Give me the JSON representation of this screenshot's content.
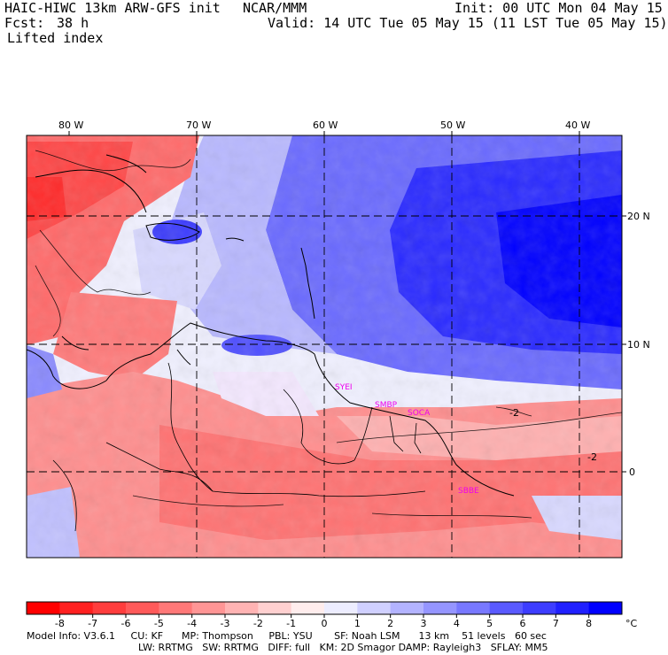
{
  "header": {
    "model_title": "HAIC-HIWC 13km ARW-GFS init",
    "center": "NCAR/MMM",
    "init": "Init: 00 UTC Mon 04 May 15",
    "fcst_label": "Fcst:",
    "fcst_value": "38 h",
    "valid": "Valid: 14 UTC Tue 05 May 15 (11 LST Tue 05 May 15)",
    "field": "Lifted index"
  },
  "map": {
    "lon_labels": [
      "80 W",
      "70 W",
      "60 W",
      "50 W",
      "40 W"
    ],
    "lat_labels": [
      "20 N",
      "10 N",
      "0"
    ],
    "stations": [
      "SYEI",
      "SMBP",
      "SOCA",
      "SBBE"
    ],
    "contour_labels": [
      "-2",
      "-2"
    ]
  },
  "colorbar": {
    "ticks": [
      "-8",
      "-7",
      "-6",
      "-5",
      "-4",
      "-3",
      "-2",
      "-1",
      "0",
      "1",
      "2",
      "3",
      "4",
      "5",
      "6",
      "7",
      "8"
    ],
    "unit": "°C",
    "colors": [
      "#ff0000",
      "#ff2020",
      "#ff3d3d",
      "#ff5a5a",
      "#ff7878",
      "#ff9595",
      "#ffb3b3",
      "#ffd0d0",
      "#ffeded",
      "#ededff",
      "#d0d0ff",
      "#b3b3ff",
      "#9595ff",
      "#7878ff",
      "#5a5aff",
      "#3d3dff",
      "#2020ff",
      "#0000ff"
    ]
  },
  "footer": {
    "line1": "Model Info: V3.6.1     CU: KF      MP: Thompson     PBL: YSU       SF: Noah LSM      13 km    51 levels   60 sec",
    "line2": "LW: RRTMG   SW: RRTMG   DIFF: full   KM: 2D Smagor DAMP: Rayleigh3   SFLAY: MM5"
  }
}
